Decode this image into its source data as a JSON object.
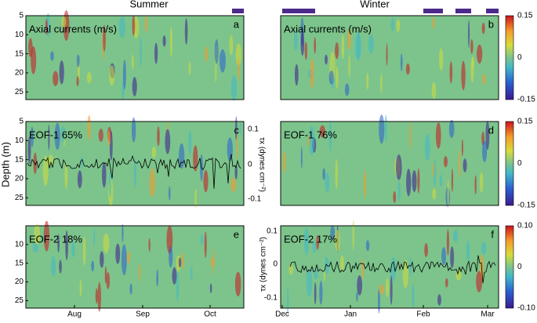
{
  "columns": [
    "Summer",
    "Winter"
  ],
  "y_axis_label": "Depth (m)",
  "panels": [
    {
      "letter": "a",
      "title": "Axial currents (m/s)"
    },
    {
      "letter": "b",
      "title": "Axial currents (m/s)"
    },
    {
      "letter": "c",
      "title": "EOF-1  65%"
    },
    {
      "letter": "d",
      "title": "EOF-1  76%"
    },
    {
      "letter": "e",
      "title": "EOF-2  18%"
    },
    {
      "letter": "f",
      "title": "EOF-2  17%"
    }
  ],
  "depth_ticks": [
    "5",
    "10",
    "15",
    "20",
    "25"
  ],
  "summer_months": [
    "Aug",
    "Sep",
    "Oct"
  ],
  "winter_months": [
    "Dec",
    "Jan",
    "Feb",
    "Mar"
  ],
  "colorbars": [
    [
      "0.15",
      "0",
      "-0.15"
    ],
    [
      "0.15",
      "0",
      "-0.15"
    ],
    [
      "0.10",
      "0",
      "-0.10"
    ]
  ],
  "stress_axis": {
    "label": "τx (dynes cm⁻²)",
    "ticks": [
      "0.1",
      "0",
      "-0.1"
    ]
  }
}
